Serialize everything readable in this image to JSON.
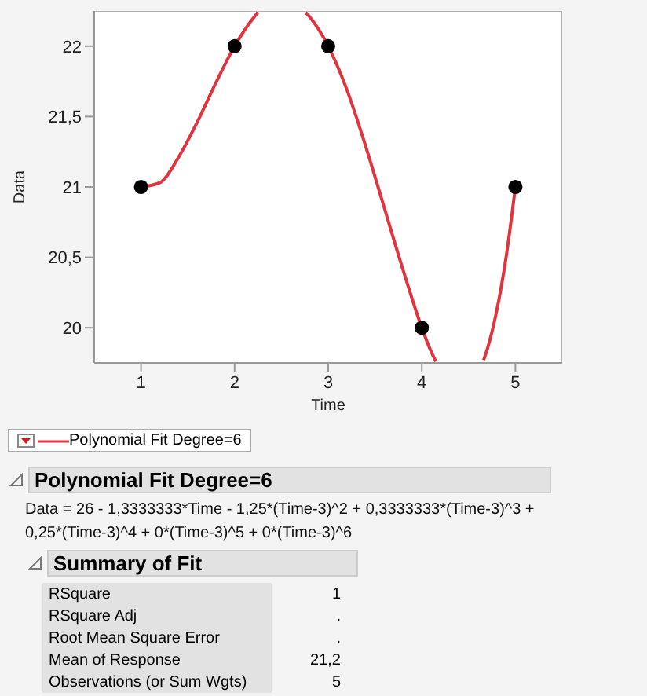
{
  "chart_data": {
    "type": "scatter",
    "xlabel": "Time",
    "ylabel": "Data",
    "xlim": [
      0.5,
      5.5
    ],
    "xticks": [
      1,
      2,
      3,
      4,
      5
    ],
    "ylim": [
      19.75,
      22.25
    ],
    "yticks": [
      20,
      {
        "value": 20.5,
        "label": "20,5"
      },
      21,
      {
        "value": 21.5,
        "label": "21,5"
      },
      22
    ],
    "grid": false,
    "legend": "bottom",
    "series": [
      {
        "marker": "circle",
        "color": "#000000",
        "x": [
          1,
          2,
          3,
          4,
          5
        ],
        "values": [
          21,
          22,
          22,
          20,
          21
        ]
      },
      {
        "type": "line",
        "marker": "none",
        "name": "Polynomial Fit Degree=6",
        "color": "#e0353f",
        "line_style": "solid",
        "x": [
          1,
          1.2,
          1.4,
          1.6,
          1.8,
          2,
          2.2,
          2.25,
          2.5,
          2.76,
          2.8,
          3,
          3.2,
          3.4,
          3.6,
          3.8,
          4,
          4.1,
          4.15,
          4.3,
          4.5,
          4.66,
          4.7,
          4.8,
          4.9,
          5
        ],
        "values": [
          21,
          21.03,
          21.21,
          21.46,
          21.74,
          22,
          22.2,
          22.24,
          null,
          22.24,
          22.21,
          22,
          21.69,
          21.29,
          20.85,
          20.41,
          20,
          19.83,
          19.76,
          null,
          null,
          19.77,
          19.85,
          20.12,
          20.5,
          21
        ]
      }
    ],
    "annotations": [
      "Polynomial Fit Degree=6",
      "Data = 26 - 1,3333333*Time - 1,25*(Time-3)^2 + 0,3333333*(Time-3)^3 + 0,25*(Time-3)^4 + 0*(Time-3)^5 + 0*(Time-3)^6",
      "Summary of Fit",
      "RSquare",
      "1",
      "RSquare Adj",
      ".",
      "Root Mean Square Error",
      ".",
      "Mean of Response",
      "21,2",
      "Observations (or Sum Wgts)",
      "5"
    ]
  }
}
